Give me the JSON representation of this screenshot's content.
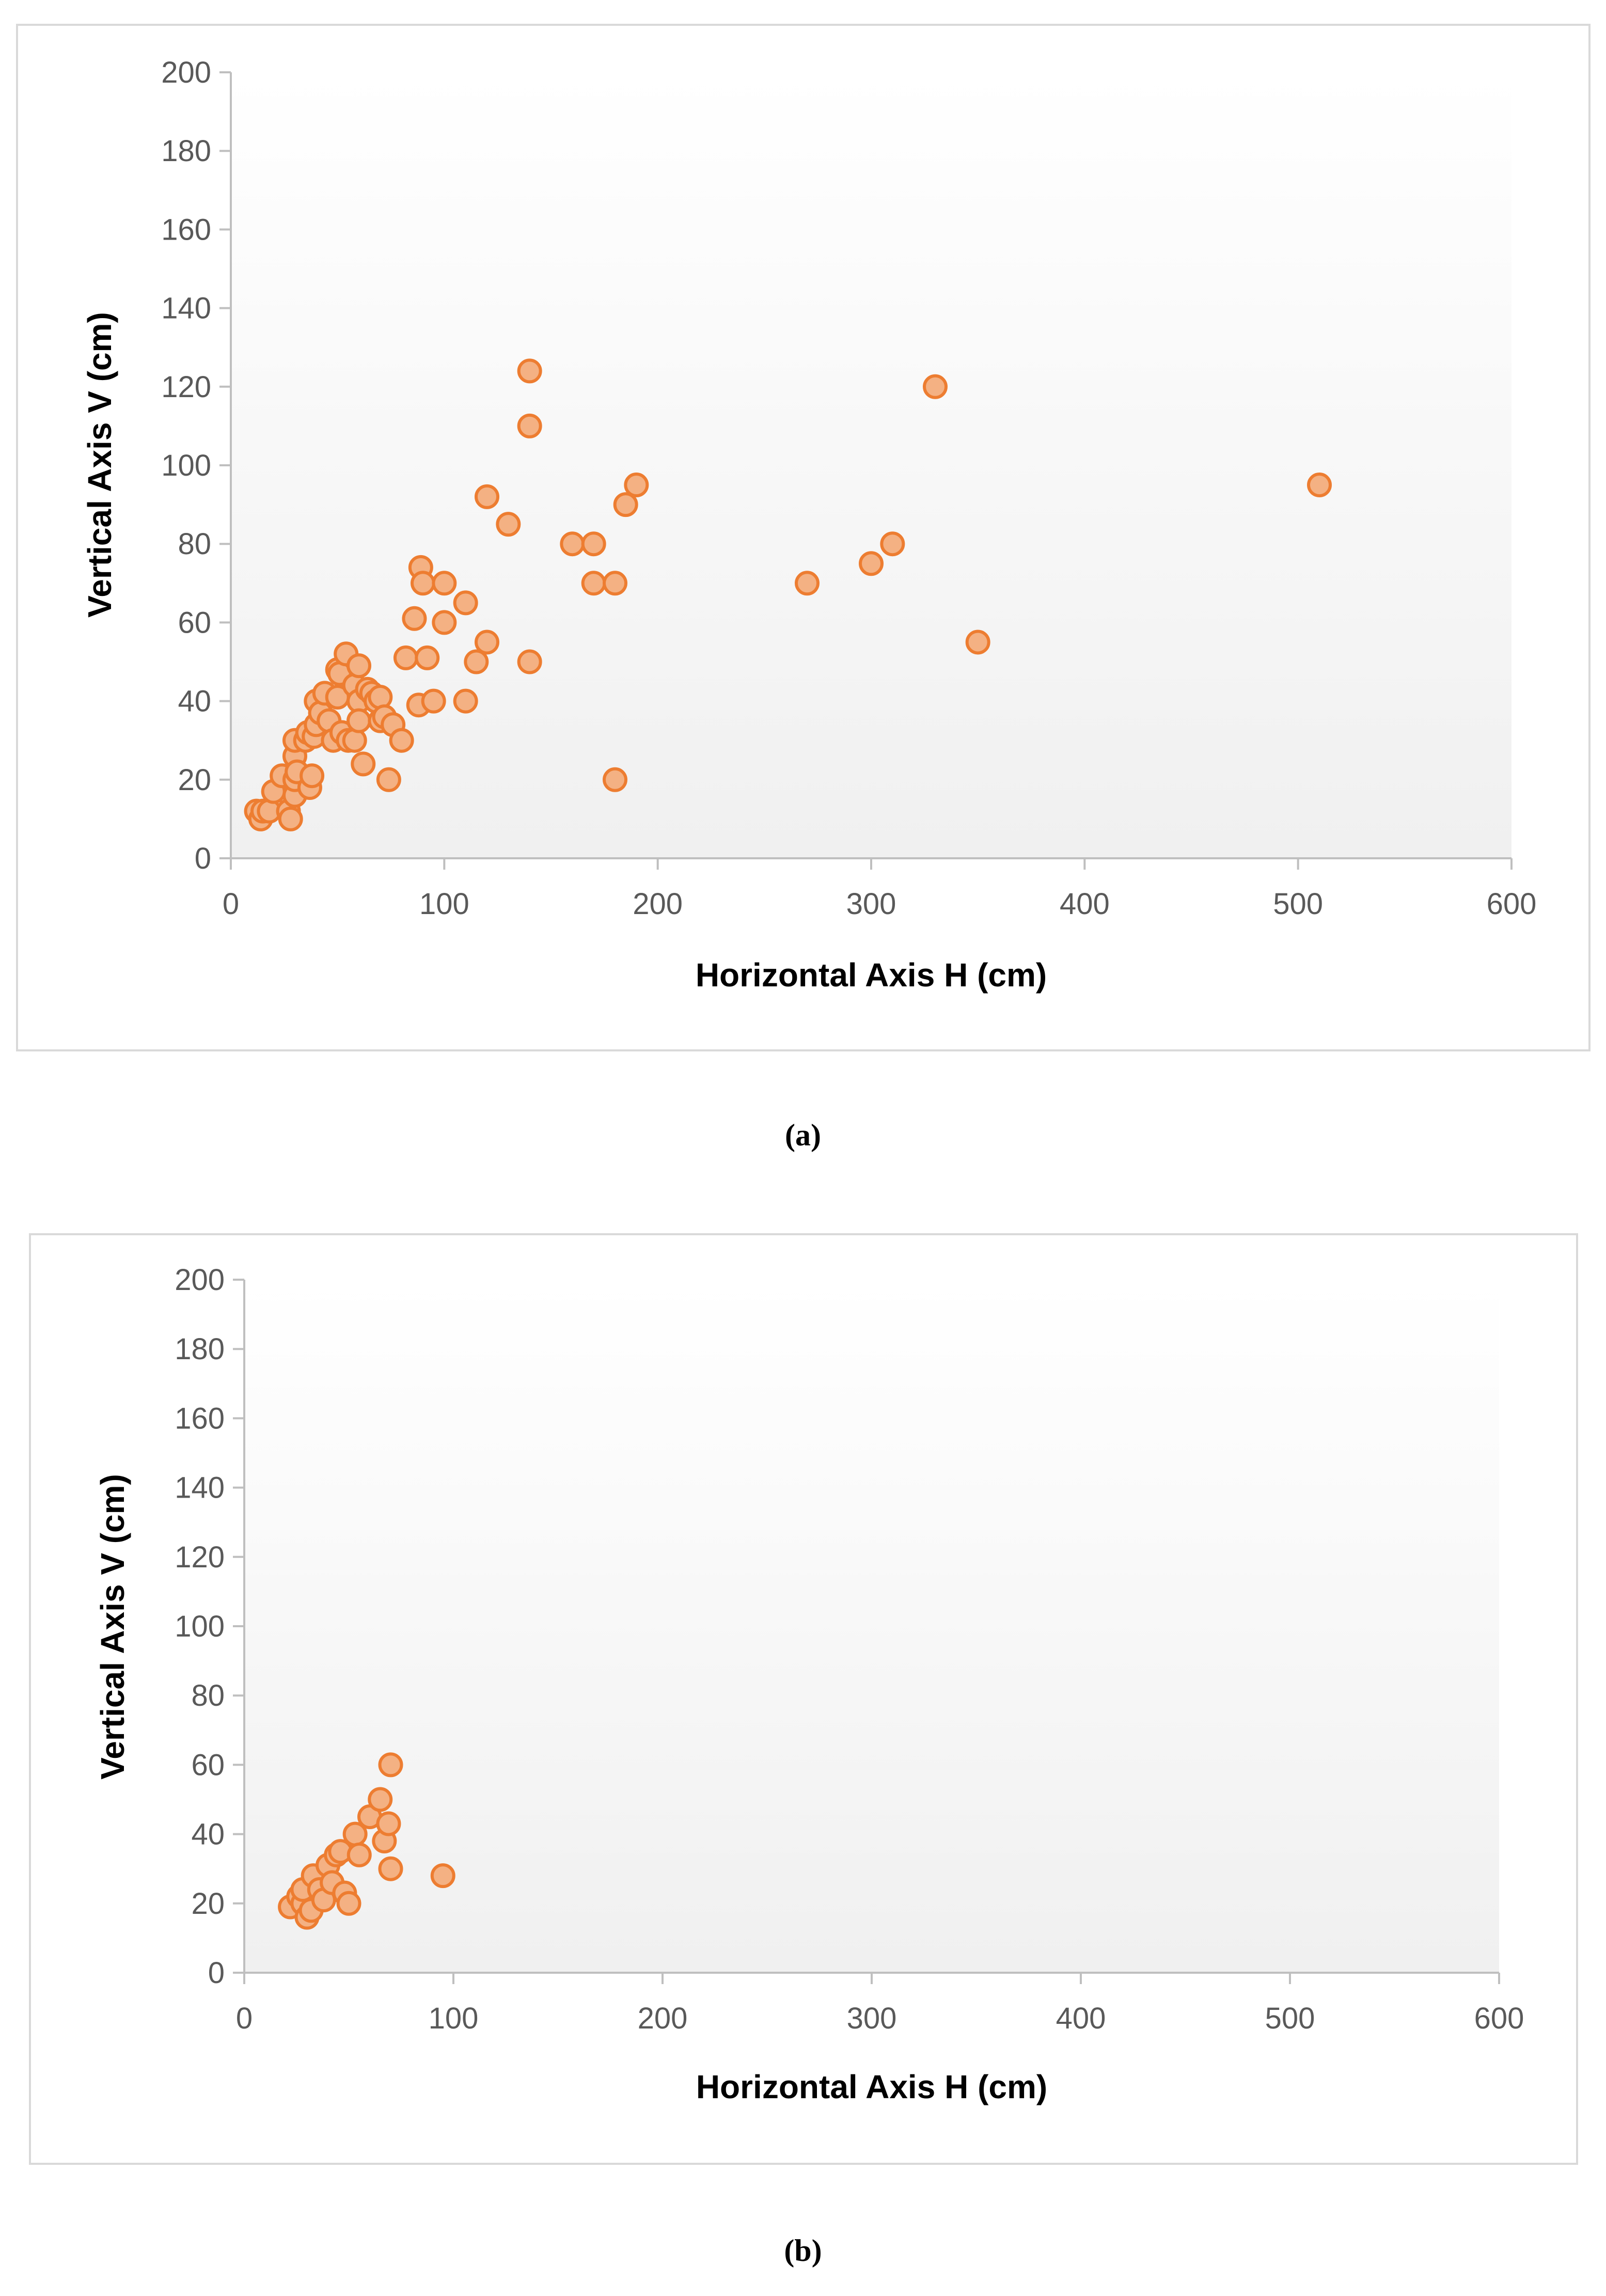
{
  "colors": {
    "marker_fill": "#f4b183",
    "marker_stroke": "#ed7d31",
    "plot_top": "#ffffff",
    "plot_bottom": "#f0f0f0"
  },
  "chart_data": [
    {
      "type": "scatter",
      "caption": "(a)",
      "xlabel": "Horizontal Axis H (cm)",
      "ylabel": "Vertical Axis V (cm)",
      "xlim": [
        0,
        600
      ],
      "ylim": [
        0,
        200
      ],
      "xticks": [
        0,
        100,
        200,
        300,
        400,
        500,
        600
      ],
      "yticks": [
        0,
        20,
        40,
        60,
        80,
        100,
        120,
        140,
        160,
        180,
        200
      ],
      "grid": false,
      "legend": "none",
      "points": [
        [
          12,
          12
        ],
        [
          14,
          10
        ],
        [
          15,
          12
        ],
        [
          18,
          12
        ],
        [
          20,
          17
        ],
        [
          24,
          21
        ],
        [
          27,
          12
        ],
        [
          28,
          10
        ],
        [
          30,
          16
        ],
        [
          30,
          20
        ],
        [
          30,
          26
        ],
        [
          30,
          30
        ],
        [
          31,
          22
        ],
        [
          35,
          30
        ],
        [
          36,
          32
        ],
        [
          37,
          18
        ],
        [
          38,
          21
        ],
        [
          39,
          31
        ],
        [
          40,
          40
        ],
        [
          40,
          34
        ],
        [
          42,
          37
        ],
        [
          44,
          42
        ],
        [
          46,
          35
        ],
        [
          48,
          30
        ],
        [
          50,
          48
        ],
        [
          50,
          41
        ],
        [
          51,
          47
        ],
        [
          52,
          32
        ],
        [
          54,
          52
        ],
        [
          55,
          30
        ],
        [
          58,
          44
        ],
        [
          58,
          30
        ],
        [
          60,
          49
        ],
        [
          60,
          40
        ],
        [
          60,
          35
        ],
        [
          62,
          24
        ],
        [
          64,
          43
        ],
        [
          66,
          42
        ],
        [
          68,
          40
        ],
        [
          70,
          41
        ],
        [
          70,
          35
        ],
        [
          72,
          36
        ],
        [
          74,
          20
        ],
        [
          76,
          34
        ],
        [
          80,
          30
        ],
        [
          82,
          51
        ],
        [
          86,
          61
        ],
        [
          88,
          39
        ],
        [
          89,
          74
        ],
        [
          90,
          70
        ],
        [
          92,
          51
        ],
        [
          95,
          40
        ],
        [
          100,
          70
        ],
        [
          100,
          60
        ],
        [
          110,
          65
        ],
        [
          110,
          40
        ],
        [
          115,
          50
        ],
        [
          120,
          92
        ],
        [
          120,
          55
        ],
        [
          130,
          85
        ],
        [
          140,
          124
        ],
        [
          140,
          110
        ],
        [
          140,
          50
        ],
        [
          160,
          80
        ],
        [
          170,
          80
        ],
        [
          170,
          70
        ],
        [
          180,
          70
        ],
        [
          180,
          20
        ],
        [
          185,
          90
        ],
        [
          190,
          95
        ],
        [
          270,
          70
        ],
        [
          300,
          75
        ],
        [
          310,
          80
        ],
        [
          330,
          120
        ],
        [
          350,
          55
        ],
        [
          510,
          95
        ]
      ]
    },
    {
      "type": "scatter",
      "caption": "(b)",
      "xlabel": "Horizontal Axis H (cm)",
      "ylabel": "Vertical Axis V  (cm)",
      "xlim": [
        0,
        600
      ],
      "ylim": [
        0,
        200
      ],
      "xticks": [
        0,
        100,
        200,
        300,
        400,
        500,
        600
      ],
      "yticks": [
        0,
        20,
        40,
        60,
        80,
        100,
        120,
        140,
        160,
        180,
        200
      ],
      "grid": false,
      "legend": "none",
      "points": [
        [
          22,
          19
        ],
        [
          26,
          22
        ],
        [
          28,
          20
        ],
        [
          28,
          24
        ],
        [
          30,
          16
        ],
        [
          32,
          18
        ],
        [
          33,
          28
        ],
        [
          36,
          24
        ],
        [
          38,
          21
        ],
        [
          40,
          31
        ],
        [
          42,
          26
        ],
        [
          44,
          34
        ],
        [
          46,
          35
        ],
        [
          48,
          23
        ],
        [
          50,
          20
        ],
        [
          53,
          40
        ],
        [
          55,
          34
        ],
        [
          60,
          45
        ],
        [
          65,
          50
        ],
        [
          67,
          38
        ],
        [
          69,
          43
        ],
        [
          70,
          30
        ],
        [
          70,
          60
        ],
        [
          95,
          28
        ]
      ]
    }
  ]
}
